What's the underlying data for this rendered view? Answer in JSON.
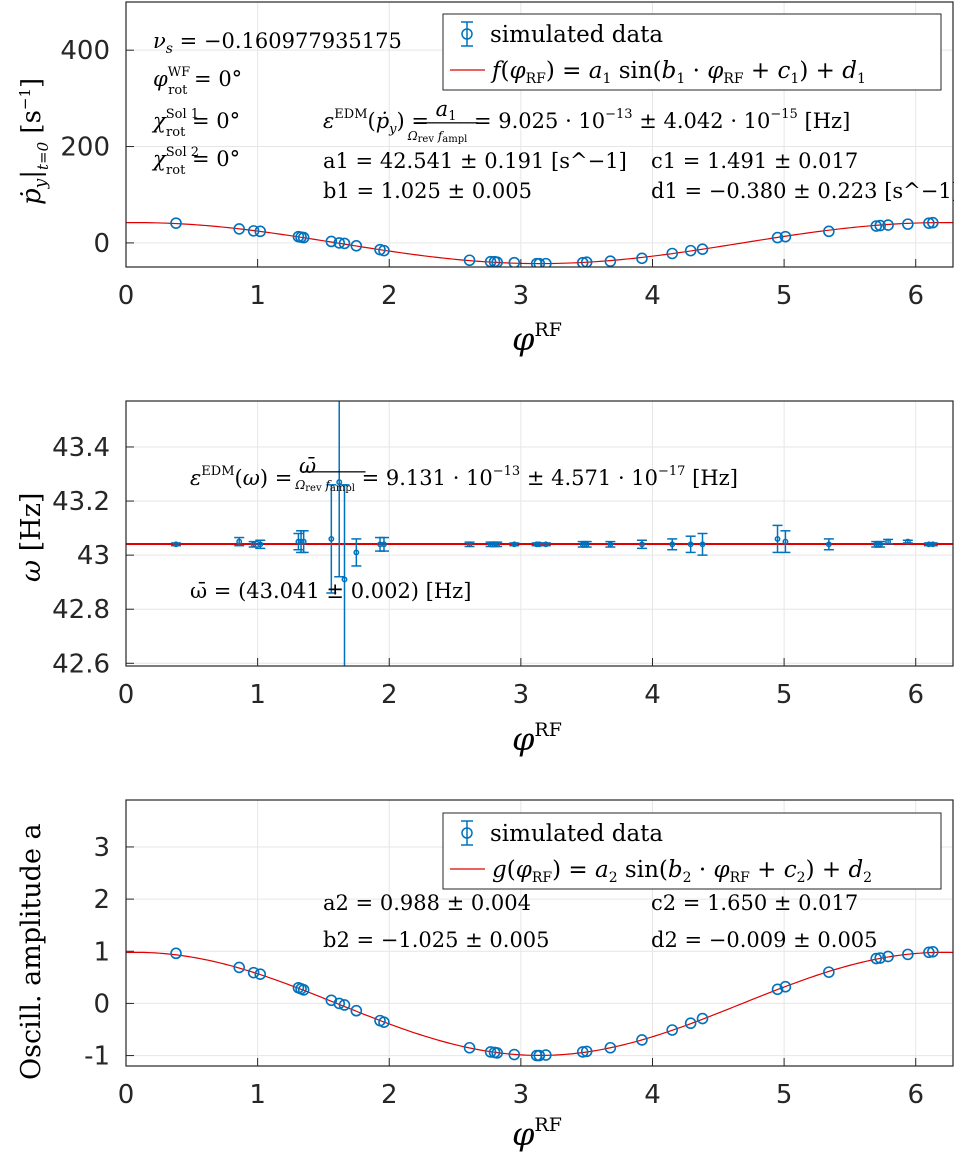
{
  "chart_data": [
    {
      "type": "scatter",
      "xlabel": "φ^RF",
      "ylabel": "ṗ_y|_{t=0} [s^-1]",
      "xlim": [
        0,
        6.2832
      ],
      "ylim": [
        -50,
        500
      ],
      "xticks": [
        "0",
        "1",
        "2",
        "3",
        "4",
        "5",
        "6"
      ],
      "yticks": [
        "0",
        "200",
        "400"
      ],
      "ytick_values": [
        0,
        200,
        400
      ],
      "legend": [
        "simulated data",
        "f(φ_RF) = a1 sin(b1 · φ_RF + c1) + d1"
      ],
      "annotations": {
        "nu": "ν_s = −0.160977935175",
        "phi_wf": "φ_rot^WF = 0°",
        "chi1": "χ_rot^Sol 1 = 0°",
        "chi2": "χ_rot^Sol 2 = 0°",
        "edm": "ε^EDM(ṗ_y) = a1 / (Ω_rev f_ampl) = 9.025 · 10^−13 ± 4.042 · 10^−15 [Hz]",
        "a1": "a1 = 42.541 ± 0.191 [s^−1]",
        "b1": "b1 = 1.025 ± 0.005",
        "c1": "c1 = 1.491 ± 0.017",
        "d1": "d1 = −0.380 ± 0.223 [s^−1]"
      },
      "fit": {
        "a": 42.541,
        "b": 1.025,
        "c": 1.491,
        "d": -0.38
      },
      "x": [
        0.38,
        0.86,
        0.97,
        1.02,
        1.31,
        1.33,
        1.35,
        1.56,
        1.62,
        1.66,
        1.75,
        1.93,
        1.96,
        2.61,
        2.77,
        2.8,
        2.82,
        2.95,
        3.12,
        3.14,
        3.19,
        3.47,
        3.5,
        3.68,
        3.92,
        4.15,
        4.29,
        4.38,
        4.95,
        5.01,
        5.34,
        5.7,
        5.73,
        5.79,
        5.94,
        6.1,
        6.13
      ],
      "y": [
        41,
        29,
        25,
        24,
        13,
        12,
        11,
        3,
        0,
        -1,
        -6,
        -14,
        -16,
        -36,
        -39,
        -39,
        -40,
        -41,
        -43,
        -43,
        -43,
        -41,
        -40,
        -38,
        -32,
        -22,
        -16,
        -13,
        11,
        13,
        24,
        35,
        36,
        37,
        39,
        41,
        42
      ]
    },
    {
      "type": "scatter",
      "xlabel": "φ^RF",
      "ylabel": "ω [Hz]",
      "xlim": [
        0,
        6.2832
      ],
      "ylim": [
        42.59,
        43.57
      ],
      "xticks": [
        "0",
        "1",
        "2",
        "3",
        "4",
        "5",
        "6"
      ],
      "yticks": [
        "42.6",
        "42.8",
        "43",
        "43.2",
        "43.4"
      ],
      "ytick_values": [
        42.6,
        42.8,
        43.0,
        43.2,
        43.4
      ],
      "mean": 43.041,
      "annotations": {
        "edm": "ε^EDM(ω) = ω̄ / (Ω_rev f_ampl) = 9.131 · 10^−13 ± 4.571 · 10^−17 [Hz]",
        "omega_bar": "ω̄ = (43.041 ± 0.002) [Hz]"
      },
      "x": [
        0.38,
        0.86,
        0.97,
        1.02,
        1.31,
        1.33,
        1.35,
        1.56,
        1.62,
        1.66,
        1.75,
        1.93,
        1.96,
        2.61,
        2.77,
        2.8,
        2.82,
        2.95,
        3.12,
        3.14,
        3.19,
        3.47,
        3.5,
        3.68,
        3.92,
        4.15,
        4.29,
        4.38,
        4.95,
        5.01,
        5.34,
        5.7,
        5.73,
        5.79,
        5.94,
        6.1,
        6.13
      ],
      "y": [
        43.04,
        43.05,
        43.04,
        43.04,
        43.05,
        43.05,
        43.05,
        43.06,
        43.27,
        42.91,
        43.01,
        43.04,
        43.04,
        43.04,
        43.04,
        43.04,
        43.04,
        43.04,
        43.04,
        43.04,
        43.04,
        43.04,
        43.04,
        43.04,
        43.04,
        43.04,
        43.04,
        43.04,
        43.06,
        43.05,
        43.04,
        43.04,
        43.04,
        43.05,
        43.05,
        43.04,
        43.04
      ],
      "err": [
        0.005,
        0.015,
        0.01,
        0.015,
        0.03,
        0.04,
        0.04,
        0.2,
        0.35,
        0.35,
        0.05,
        0.025,
        0.025,
        0.008,
        0.008,
        0.008,
        0.008,
        0.005,
        0.005,
        0.005,
        0.005,
        0.01,
        0.01,
        0.01,
        0.015,
        0.02,
        0.03,
        0.04,
        0.05,
        0.04,
        0.02,
        0.01,
        0.01,
        0.008,
        0.005,
        0.005,
        0.005
      ]
    },
    {
      "type": "scatter",
      "xlabel": "φ^RF",
      "ylabel": "Oscill. amplitude a",
      "xlim": [
        0,
        6.2832
      ],
      "ylim": [
        -1.2,
        3.9
      ],
      "xticks": [
        "0",
        "1",
        "2",
        "3",
        "4",
        "5",
        "6"
      ],
      "yticks": [
        "-1",
        "0",
        "1",
        "2",
        "3"
      ],
      "ytick_values": [
        -1,
        0,
        1,
        2,
        3
      ],
      "legend": [
        "simulated data",
        "g(φ_RF) = a2 sin(b2 · φ_RF + c2) + d2"
      ],
      "annotations": {
        "a2": "a2 = 0.988 ± 0.004",
        "b2": "b2 = −1.025 ± 0.005",
        "c2": "c2 = 1.650 ± 0.017",
        "d2": "d2 = −0.009 ± 0.005"
      },
      "fit": {
        "a": 0.988,
        "b": -1.025,
        "c": 1.65,
        "d": -0.009
      },
      "x": [
        0.38,
        0.86,
        0.97,
        1.02,
        1.31,
        1.33,
        1.35,
        1.56,
        1.62,
        1.66,
        1.75,
        1.93,
        1.96,
        2.61,
        2.77,
        2.8,
        2.82,
        2.95,
        3.12,
        3.14,
        3.19,
        3.47,
        3.5,
        3.68,
        3.92,
        4.15,
        4.29,
        4.38,
        4.95,
        5.01,
        5.34,
        5.7,
        5.73,
        5.79,
        5.94,
        6.1,
        6.13
      ],
      "y": [
        0.96,
        0.69,
        0.59,
        0.56,
        0.3,
        0.28,
        0.26,
        0.06,
        0.0,
        -0.03,
        -0.14,
        -0.33,
        -0.36,
        -0.85,
        -0.93,
        -0.94,
        -0.95,
        -0.98,
        -1.0,
        -1.0,
        -0.99,
        -0.93,
        -0.92,
        -0.85,
        -0.7,
        -0.51,
        -0.38,
        -0.29,
        0.27,
        0.32,
        0.6,
        0.86,
        0.87,
        0.9,
        0.94,
        0.98,
        0.99
      ]
    }
  ]
}
